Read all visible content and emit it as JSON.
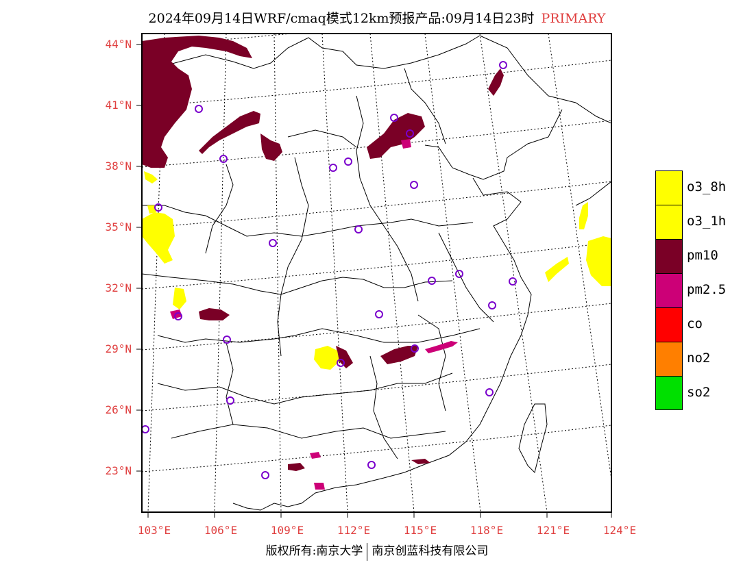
{
  "header": {
    "title": "2024年09月14日WRF/cmaq模式12km预报产品:09月14日23时",
    "tag": "PRIMARY"
  },
  "map": {
    "lat_labels": [
      "44°N",
      "41°N",
      "38°N",
      "35°N",
      "32°N",
      "29°N",
      "26°N",
      "23°N"
    ],
    "lon_labels": [
      "103°E",
      "106°E",
      "109°E",
      "112°E",
      "115°E",
      "118°E",
      "121°E",
      "124°E"
    ],
    "colors": {
      "o3_8h": "#ffff00",
      "o3_1h": "#ffff00",
      "pm10": "#7a0026",
      "pm2_5": "#cc0077",
      "co": "#ff0000",
      "no2": "#ff7f00",
      "so2": "#00e000",
      "station": "#7a00cc"
    }
  },
  "legend": {
    "items": [
      {
        "label": "o3_8h",
        "color": "#ffff00"
      },
      {
        "label": "o3_1h",
        "color": "#ffff00"
      },
      {
        "label": "pm10",
        "color": "#7a0026"
      },
      {
        "label": "pm2.5",
        "color": "#cc0077"
      },
      {
        "label": "co",
        "color": "#ff0000"
      },
      {
        "label": "no2",
        "color": "#ff7f00"
      },
      {
        "label": "so2",
        "color": "#00e000"
      }
    ]
  },
  "footer": {
    "left": "版权所有:南京大学",
    "right": "南京创蓝科技有限公司"
  }
}
